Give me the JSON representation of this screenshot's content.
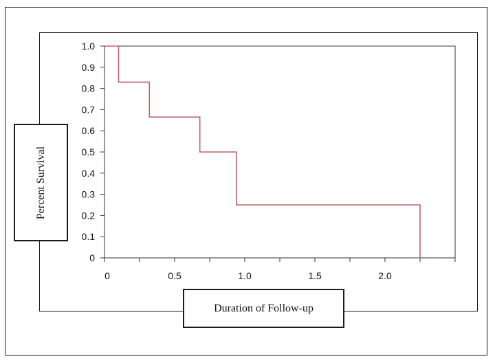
{
  "chart_data": {
    "type": "line",
    "title": "",
    "xlabel": "Duration of Follow-up",
    "ylabel": "Percent Survival",
    "xlim": [
      0,
      2.5
    ],
    "ylim": [
      0,
      1.0
    ],
    "x_ticks": [
      0,
      0.25,
      0.5,
      0.75,
      1.0,
      1.25,
      1.5,
      1.75,
      2.0,
      2.25,
      2.5
    ],
    "x_tick_labels": [
      {
        "value": 0,
        "label": "0"
      },
      {
        "value": 0.5,
        "label": "0.5"
      },
      {
        "value": 1.0,
        "label": "1.0"
      },
      {
        "value": 1.5,
        "label": "1.5"
      },
      {
        "value": 2.0,
        "label": "2.0"
      }
    ],
    "y_ticks": [
      0,
      0.1,
      0.2,
      0.3,
      0.4,
      0.5,
      0.6,
      0.7,
      0.8,
      0.9,
      1.0
    ],
    "y_tick_labels": [
      "0",
      "0.1",
      "0.2",
      "0.3",
      "0.4",
      "0.5",
      "0.6",
      "0.7",
      "0.8",
      "0.9",
      "1.0"
    ],
    "grid": false,
    "legend": "none",
    "step_color": "#c0606e",
    "series": [
      {
        "x": [
          0,
          0.1,
          0.1,
          0.32,
          0.32,
          0.68,
          0.68,
          0.94,
          0.94,
          2.25,
          2.25
        ],
        "y": [
          1.0,
          1.0,
          0.83,
          0.83,
          0.665,
          0.665,
          0.5,
          0.5,
          0.25,
          0.25,
          0
        ]
      }
    ]
  }
}
